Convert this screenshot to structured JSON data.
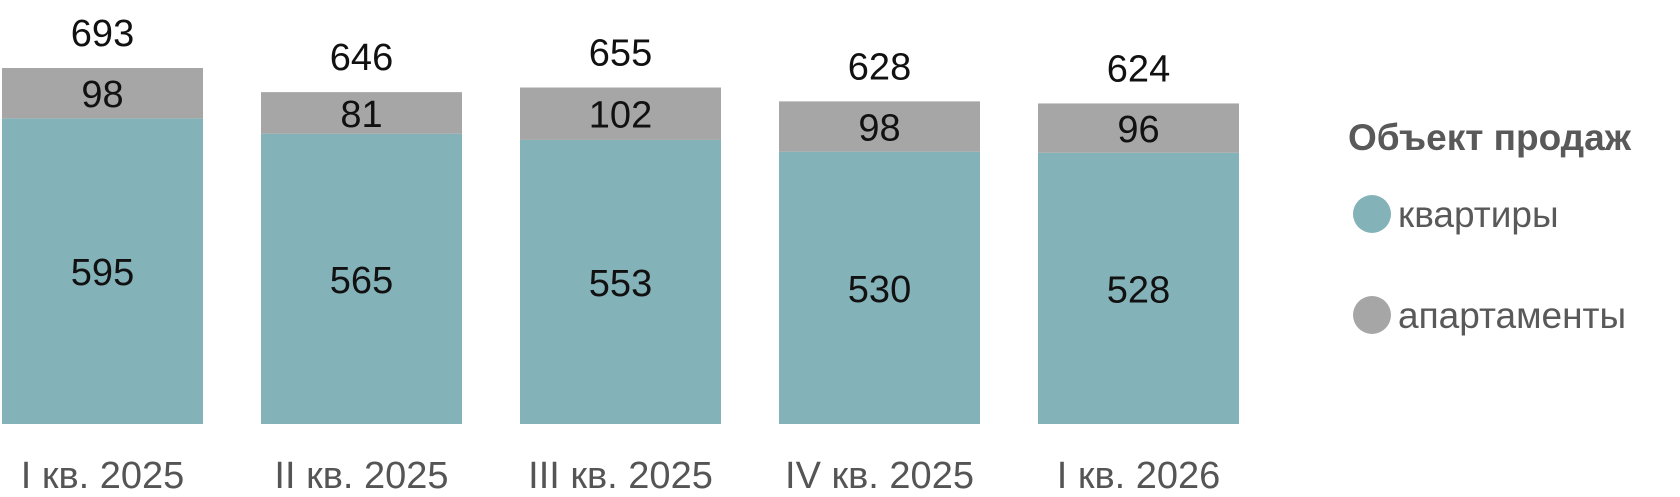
{
  "chart_data": {
    "type": "bar",
    "stacked": true,
    "categories": [
      "I кв. 2025",
      "II кв. 2025",
      "III кв. 2025",
      "IV кв. 2025",
      "I кв. 2026"
    ],
    "series": [
      {
        "name": "квартиры",
        "values": [
          595,
          565,
          553,
          530,
          528
        ],
        "color": "#84b2b9"
      },
      {
        "name": "апартаменты",
        "values": [
          98,
          81,
          102,
          98,
          96
        ],
        "color": "#a6a6a6"
      }
    ],
    "totals": [
      693,
      646,
      655,
      628,
      624
    ],
    "legend": {
      "title": "Объект продаж",
      "position": "right"
    },
    "ylim": [
      0,
      700
    ],
    "grid": false
  }
}
